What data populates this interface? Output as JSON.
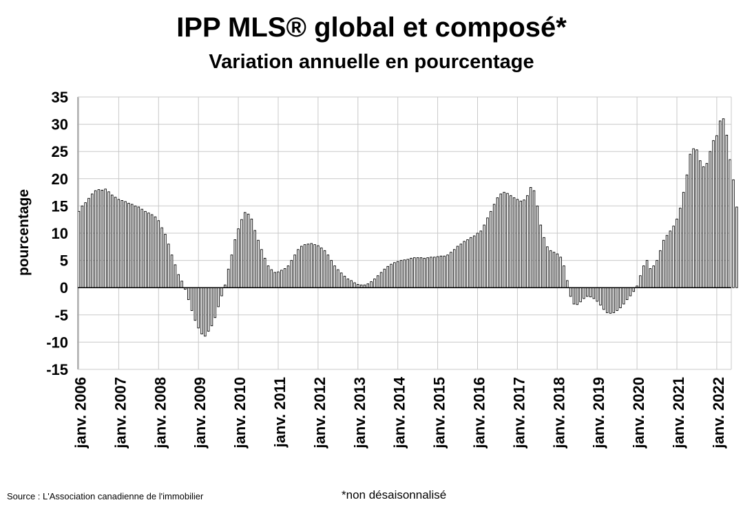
{
  "chart_data": {
    "type": "bar",
    "title": "IPP MLS® global et composé*",
    "subtitle": "Variation annuelle en pourcentage",
    "ylabel": "pourcentage",
    "xlabel": "",
    "ylim": [
      -15,
      35
    ],
    "yticks": [
      -15,
      -10,
      -5,
      0,
      5,
      10,
      15,
      20,
      25,
      30,
      35
    ],
    "grid": true,
    "legend": "none",
    "xtick_labels": [
      "janv. 2006",
      "janv. 2007",
      "janv. 2008",
      "janv. 2009",
      "janv. 2010",
      "janv. 2011",
      "janv. 2012",
      "janv. 2013",
      "janv. 2014",
      "janv. 2015",
      "janv. 2016",
      "janv. 2017",
      "janv. 2018",
      "janv. 2019",
      "janv. 2020",
      "janv. 2021",
      "janv. 2022"
    ],
    "series": [
      {
        "name": "IPP MLS® global et composé",
        "start": "janv. 2006",
        "frequency": "monthly",
        "values": [
          14.0,
          15.0,
          15.6,
          16.4,
          17.2,
          17.8,
          18.0,
          17.9,
          18.1,
          17.6,
          17.0,
          16.6,
          16.2,
          16.0,
          15.8,
          15.5,
          15.3,
          15.0,
          14.8,
          14.4,
          14.0,
          13.7,
          13.4,
          13.0,
          12.3,
          11.0,
          9.8,
          8.0,
          6.0,
          4.2,
          2.4,
          1.2,
          -0.3,
          -2.2,
          -4.2,
          -6.0,
          -7.4,
          -8.5,
          -8.9,
          -8.0,
          -7.0,
          -5.5,
          -3.5,
          -1.5,
          0.5,
          3.4,
          6.0,
          8.8,
          10.8,
          12.5,
          13.8,
          13.5,
          12.6,
          10.5,
          8.7,
          7.0,
          5.4,
          4.0,
          3.3,
          2.8,
          2.9,
          3.2,
          3.5,
          4.0,
          5.0,
          6.0,
          7.0,
          7.6,
          7.9,
          8.0,
          8.1,
          7.9,
          7.7,
          7.3,
          6.8,
          6.0,
          5.0,
          4.0,
          3.3,
          2.7,
          2.1,
          1.6,
          1.3,
          0.9,
          0.6,
          0.5,
          0.5,
          0.7,
          1.1,
          1.6,
          2.2,
          2.8,
          3.4,
          3.9,
          4.3,
          4.6,
          4.8,
          5.0,
          5.1,
          5.2,
          5.4,
          5.5,
          5.5,
          5.5,
          5.4,
          5.5,
          5.6,
          5.6,
          5.7,
          5.8,
          5.8,
          6.0,
          6.5,
          7.0,
          7.6,
          8.0,
          8.5,
          8.8,
          9.2,
          9.5,
          10.0,
          10.4,
          11.5,
          12.8,
          14.0,
          15.3,
          16.5,
          17.2,
          17.5,
          17.3,
          16.9,
          16.5,
          16.2,
          15.9,
          16.1,
          16.9,
          18.4,
          17.8,
          15.0,
          11.5,
          9.2,
          7.5,
          6.8,
          6.5,
          6.2,
          5.6,
          4.0,
          1.3,
          -1.6,
          -3.0,
          -3.1,
          -2.6,
          -2.0,
          -1.6,
          -1.7,
          -2.0,
          -2.5,
          -3.2,
          -4.0,
          -4.6,
          -4.7,
          -4.6,
          -4.2,
          -3.7,
          -3.0,
          -2.2,
          -1.5,
          -0.7,
          0.3,
          2.2,
          4.0,
          5.0,
          3.5,
          4.0,
          5.0,
          6.8,
          8.7,
          9.6,
          10.4,
          11.3,
          12.6,
          14.6,
          17.5,
          20.7,
          24.5,
          25.5,
          25.3,
          23.3,
          22.2,
          22.8,
          25.0,
          27.0,
          27.9,
          30.6,
          31.0,
          28.0,
          23.5,
          19.8,
          14.8
        ]
      }
    ]
  },
  "footer": {
    "source": "Source : L'Association canadienne de l'immobilier",
    "note": "*non désaisonnalisé"
  },
  "colors": {
    "bar_fill": "#ffffff",
    "bar_stroke": "#000000",
    "grid": "#c8c8c8",
    "axis": "#7f7f7f"
  }
}
